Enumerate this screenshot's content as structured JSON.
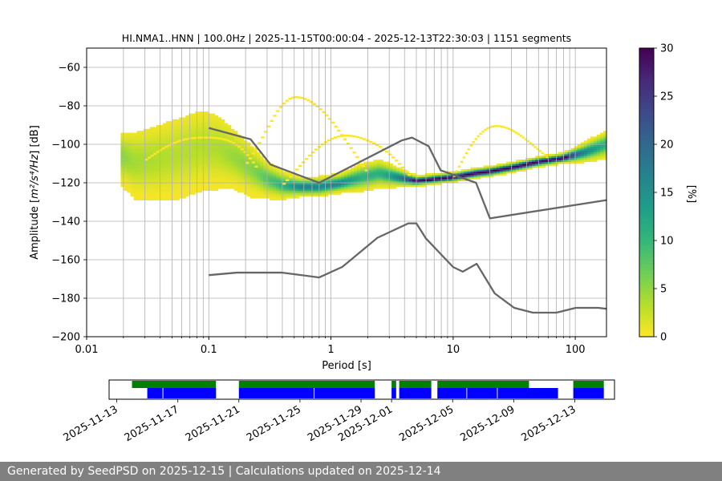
{
  "chart_data": [
    {
      "type": "heatmap",
      "title": "HI.NMA1..HNN | 100.0Hz | 2025-11-15T00:00:04 - 2025-12-13T22:30:03 | 1151 segments",
      "xlabel": "Period [s]",
      "ylabel_prefix": "Amplitude [",
      "ylabel_units": "m²/s⁴/Hz",
      "ylabel_suffix": "] [dB]",
      "xscale": "log",
      "xlim": [
        0.01,
        180
      ],
      "ylim": [
        -200,
        -50
      ],
      "x_ticks": [
        {
          "value": 0.01,
          "label": "0.01"
        },
        {
          "value": 0.1,
          "label": "0.1"
        },
        {
          "value": 1,
          "label": "1"
        },
        {
          "value": 10,
          "label": "10"
        },
        {
          "value": 100,
          "label": "100"
        }
      ],
      "y_ticks": [
        {
          "value": -60,
          "label": "−60"
        },
        {
          "value": -80,
          "label": "−80"
        },
        {
          "value": -100,
          "label": "−100"
        },
        {
          "value": -120,
          "label": "−120"
        },
        {
          "value": -140,
          "label": "−140"
        },
        {
          "value": -160,
          "label": "−160"
        },
        {
          "value": -180,
          "label": "−180"
        },
        {
          "value": -200,
          "label": "−200"
        }
      ],
      "colorbar": {
        "label": "[%]",
        "range": [
          0,
          30
        ],
        "ticks": [
          {
            "value": 0,
            "label": "0"
          },
          {
            "value": 5,
            "label": "5"
          },
          {
            "value": 10,
            "label": "10"
          },
          {
            "value": 15,
            "label": "15"
          },
          {
            "value": 20,
            "label": "20"
          },
          {
            "value": 25,
            "label": "25"
          },
          {
            "value": 30,
            "label": "30"
          }
        ],
        "colormap": "viridis_r"
      },
      "mode_curve": {
        "period": [
          0.019,
          0.025,
          0.035,
          0.05,
          0.07,
          0.09,
          0.12,
          0.16,
          0.22,
          0.3,
          0.4,
          0.55,
          0.8,
          1.2,
          1.8,
          2.5,
          3.5,
          5,
          7,
          10,
          15,
          20,
          30,
          50,
          80,
          120,
          180
        ],
        "amplitude": [
          -106,
          -109,
          -108,
          -106,
          -103,
          -101,
          -102,
          -106,
          -112,
          -118,
          -121,
          -122,
          -122,
          -120,
          -117,
          -115,
          -117,
          -119,
          -118,
          -117,
          -115,
          -114,
          -112,
          -109,
          -107,
          -104,
          -100
        ],
        "spread": [
          6,
          8,
          9,
          10,
          10,
          10,
          9,
          7,
          6,
          4,
          3,
          2,
          2,
          2,
          3,
          3,
          2,
          1,
          1,
          1,
          1,
          1,
          1,
          1,
          1,
          2,
          3
        ],
        "outlier_arcs": [
          {
            "p_start": 0.2,
            "p_end": 2.0,
            "peak": -76,
            "peak_period": 0.5
          },
          {
            "p_start": 0.4,
            "p_end": 4.5,
            "peak": -96,
            "peak_period": 1.3
          },
          {
            "p_start": 10,
            "p_end": 60,
            "peak": -91,
            "peak_period": 22
          },
          {
            "p_start": 0.03,
            "p_end": 0.25,
            "peak": -97,
            "peak_period": 0.09
          }
        ]
      },
      "nhnm": {
        "period": [
          0.1,
          0.17,
          0.4,
          0.8,
          1.24,
          2.4,
          4.3,
          5.0,
          6.0,
          10.0,
          12.0,
          15.6,
          21.9,
          31.6,
          45.0,
          70.0,
          101.0,
          154.0,
          180.0
        ],
        "amplitude": [
          -168,
          -166.7,
          -166.7,
          -169.2,
          -163.7,
          -148.6,
          -141.1,
          -141.1,
          -149,
          -163.8,
          -166.2,
          -162.1,
          -177.5,
          -185,
          -187.5,
          -187.5,
          -185,
          -185,
          -185.5
        ]
      },
      "nlnm_line": {
        "period": [
          0.1,
          0.22,
          0.32,
          0.8,
          3.8,
          4.6,
          6.3,
          7.9,
          15.4,
          20.0,
          180.0
        ],
        "amplitude": [
          -91.5,
          -97.4,
          -110.5,
          -120,
          -98,
          -96.5,
          -101,
          -113.5,
          -120,
          -138.5,
          -129
        ]
      }
    },
    {
      "type": "timeline",
      "x_ticks": [
        "2025-11-13",
        "2025-11-17",
        "2025-11-21",
        "2025-11-25",
        "2025-11-29",
        "2025-12-01",
        "2025-12-05",
        "2025-12-09",
        "2025-12-13"
      ],
      "x_tick_days": [
        0,
        4,
        8,
        12,
        16,
        18,
        22,
        26,
        30
      ],
      "range_days": [
        -0.5,
        32.6
      ],
      "colors": {
        "data": "#0000ff",
        "psd": "#008000"
      },
      "data_segments": [
        [
          2.0,
          3.0
        ],
        [
          3.05,
          6.5
        ],
        [
          8.0,
          12.9
        ],
        [
          12.95,
          16.9
        ],
        [
          18.0,
          18.3
        ],
        [
          18.5,
          20.6
        ],
        [
          21.0,
          22.9
        ],
        [
          22.95,
          24.9
        ],
        [
          24.95,
          28.9
        ],
        [
          29.9,
          31.9
        ]
      ],
      "psd_segments": [
        [
          1.0,
          6.5
        ],
        [
          8.0,
          16.9
        ],
        [
          18.0,
          18.3
        ],
        [
          18.5,
          20.6
        ],
        [
          21.0,
          27.0
        ],
        [
          29.9,
          31.9
        ]
      ]
    }
  ],
  "footer": {
    "text": "Generated by SeedPSD on 2025-12-15 | Calculations updated on 2025-12-14"
  }
}
